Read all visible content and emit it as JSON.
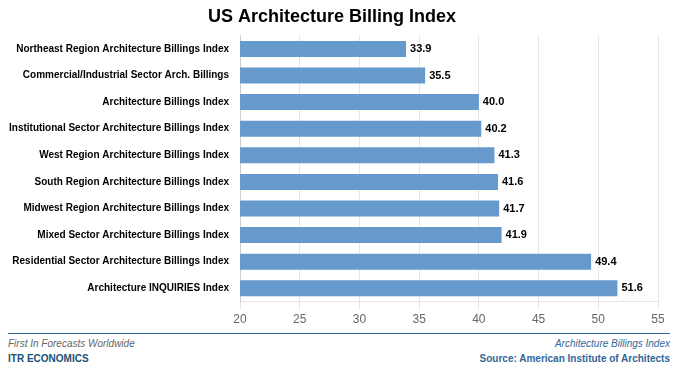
{
  "chart_data": {
    "type": "bar",
    "orientation": "horizontal",
    "title": "US Architecture Billing Index",
    "categories": [
      "Northeast Region Architecture Billings Index",
      "Commercial/Industrial Sector Arch. Billings",
      "Architecture Billings Index",
      "Institutional Sector Architecture Billings Index",
      "West Region Architecture Billings Index",
      "South Region Architecture Billings Index",
      "Midwest Region Architecture Billings Index",
      "Mixed Sector Architecture Billings Index",
      "Residential Sector Architecture Billings Index",
      "Architecture INQUIRIES Index"
    ],
    "values": [
      33.9,
      35.5,
      40.0,
      40.2,
      41.3,
      41.6,
      41.7,
      41.9,
      49.4,
      51.6
    ],
    "value_labels": [
      "33.9",
      "35.5",
      "40.0",
      "40.2",
      "41.3",
      "41.6",
      "41.7",
      "41.9",
      "49.4",
      "51.6"
    ],
    "data_labels": true,
    "color": "#6699CC",
    "xlim": [
      20,
      55
    ],
    "xticks": [
      20,
      25,
      30,
      35,
      40,
      45,
      50,
      55
    ],
    "grid": true,
    "annotations": [
      "First In Forecasts Worldwide",
      "ITR ECONOMICS",
      "Architecture Billings Index",
      "Source: American Institute of Architects"
    ]
  }
}
